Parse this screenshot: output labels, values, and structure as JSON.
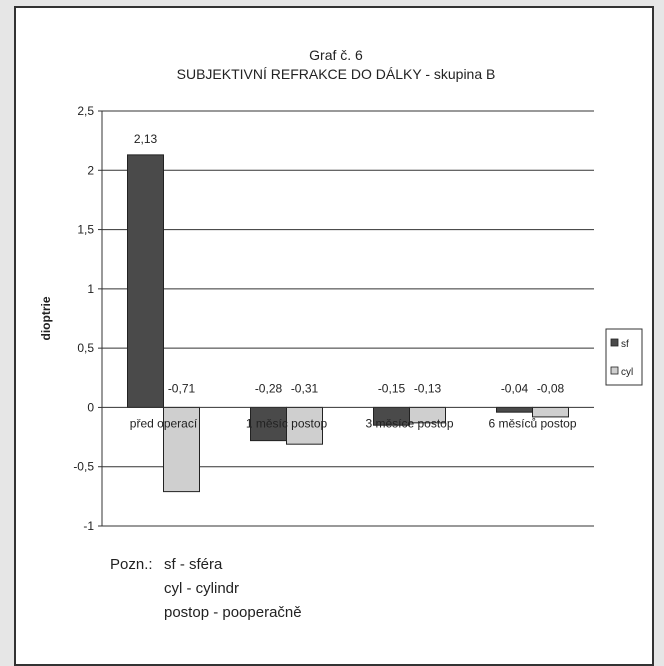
{
  "chart_data": {
    "type": "bar",
    "title_line1": "Graf č. 6",
    "title_line2": "SUBJEKTIVNÍ REFRAKCE  DO DÁLKY  - skupina B",
    "ylabel": "dioptrie",
    "xlabel": "",
    "ylim": [
      -1,
      2.5
    ],
    "yticks": [
      -1,
      -0.5,
      0,
      0.5,
      1,
      1.5,
      2,
      2.5
    ],
    "ytick_labels": [
      "-1",
      "-0,5",
      "0",
      "0,5",
      "1",
      "1,5",
      "2",
      "2,5"
    ],
    "grid": true,
    "legend_position": "right",
    "categories": [
      "před operací",
      "1 měsíc postop",
      "3 měsíce postop",
      "6 měsíců postop"
    ],
    "series": [
      {
        "name": "sf",
        "color": "#4a4a4a",
        "values": [
          2.13,
          -0.28,
          -0.15,
          -0.04
        ],
        "labels": [
          "2,13",
          "-0,28",
          "-0,15",
          "-0,04"
        ]
      },
      {
        "name": "cyl",
        "color": "#cfcfcf",
        "values": [
          -0.71,
          -0.31,
          -0.13,
          -0.08
        ],
        "labels": [
          "-0,71",
          "-0,31",
          "-0,13",
          "-0,08"
        ]
      }
    ]
  },
  "notes": {
    "prefix": "Pozn.:",
    "line1": "sf - sféra",
    "line2": "cyl - cylindr",
    "line3": "postop - pooperačně"
  }
}
